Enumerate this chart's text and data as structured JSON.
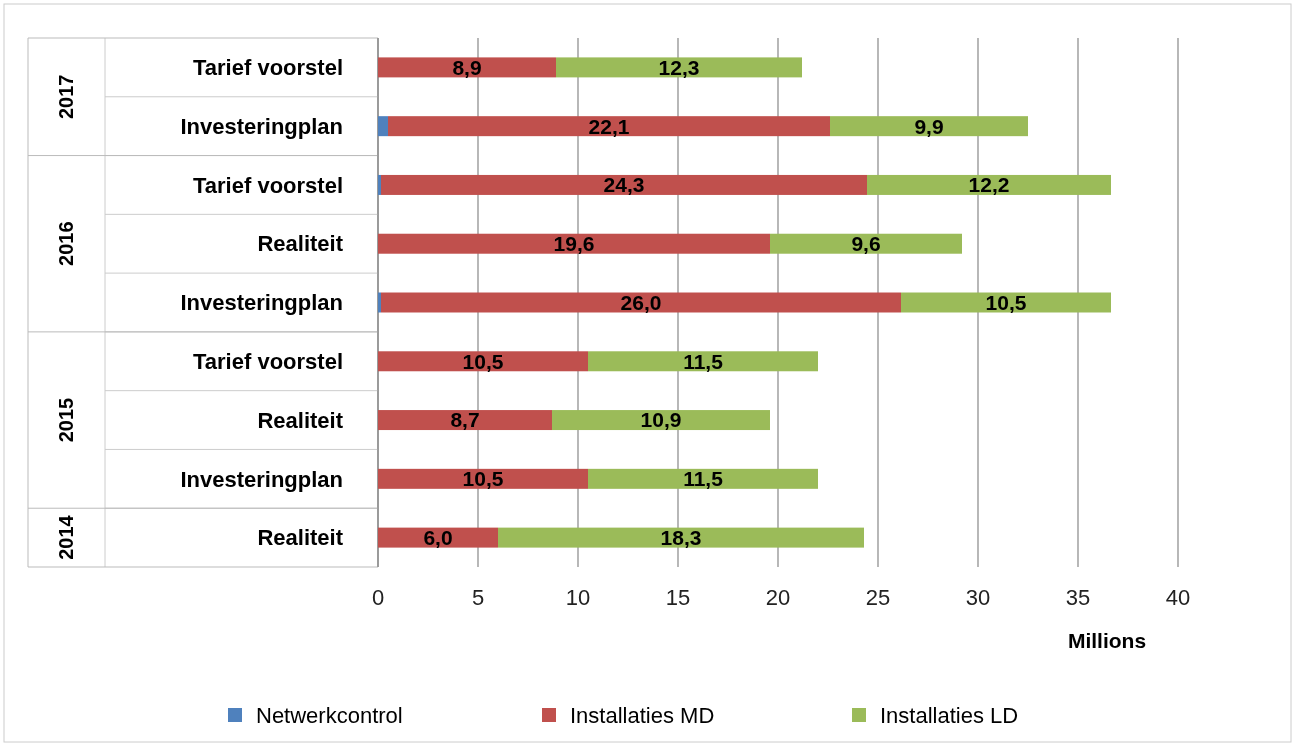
{
  "chart_data": {
    "type": "bar",
    "orientation": "horizontal",
    "stacked": true,
    "categories": [
      "Tarief voorstel",
      "Investeringplan",
      "Tarief voorstel",
      "Realiteit",
      "Investeringplan",
      "Tarief voorstel",
      "Realiteit",
      "Investeringplan",
      "Realiteit"
    ],
    "series": [
      {
        "name": "Netwerkcontrol",
        "color": "#4f81bd",
        "values": [
          0,
          0.5,
          0.15,
          0,
          0.15,
          0,
          0,
          0,
          0
        ]
      },
      {
        "name": "Installaties MD",
        "color": "#c0504d",
        "values": [
          8.9,
          22.1,
          24.3,
          19.6,
          26.0,
          10.5,
          8.7,
          10.5,
          6.0
        ],
        "value_labels": [
          "8,9",
          "22,1",
          "24,3",
          "19,6",
          "26,0",
          "10,5",
          "8,7",
          "10,5",
          "6,0"
        ]
      },
      {
        "name": "Installaties LD",
        "color": "#9bbb59",
        "values": [
          12.3,
          9.9,
          12.2,
          9.6,
          10.5,
          11.5,
          10.9,
          11.5,
          18.3
        ],
        "value_labels": [
          "12,3",
          "9,9",
          "12,2",
          "9,6",
          "10,5",
          "11,5",
          "10,9",
          "11,5",
          "18,3"
        ]
      }
    ],
    "xlim": [
      0,
      40
    ],
    "xticks": [
      0,
      5,
      10,
      15,
      20,
      25,
      30,
      35,
      40
    ],
    "xlabel": "Millions",
    "grid": "x",
    "legend": "bottom",
    "annotations": [
      "2017",
      "2016",
      "2015",
      "2014"
    ]
  }
}
